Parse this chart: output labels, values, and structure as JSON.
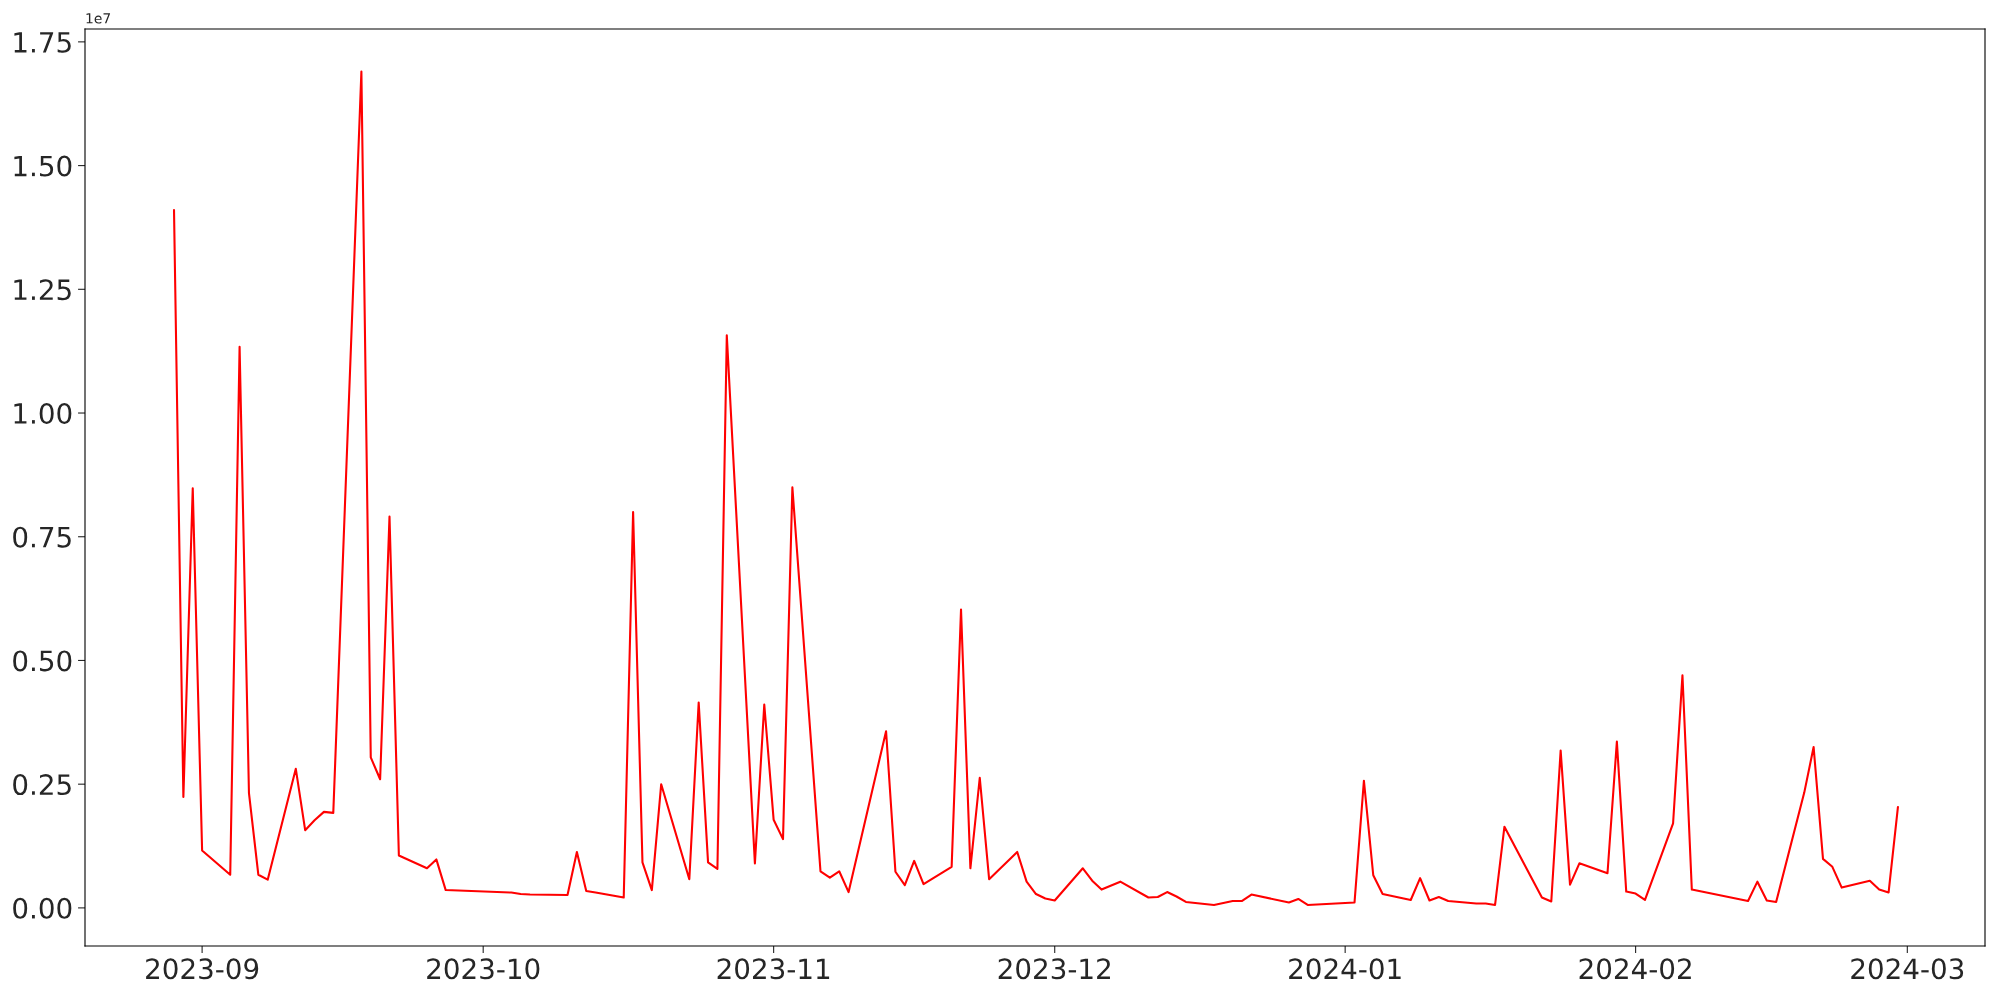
{
  "chart_data": {
    "type": "line",
    "annotations": [
      "1e7"
    ],
    "x": [
      "2023-08-29",
      "2023-08-30",
      "2023-08-31",
      "2023-09-01",
      "2023-09-04",
      "2023-09-05",
      "2023-09-06",
      "2023-09-07",
      "2023-09-08",
      "2023-09-11",
      "2023-09-12",
      "2023-09-13",
      "2023-09-14",
      "2023-09-15",
      "2023-09-18",
      "2023-09-19",
      "2023-09-20",
      "2023-09-21",
      "2023-09-22",
      "2023-09-25",
      "2023-09-26",
      "2023-09-27",
      "2023-10-04",
      "2023-10-05",
      "2023-10-06",
      "2023-10-10",
      "2023-10-11",
      "2023-10-12",
      "2023-10-13",
      "2023-10-16",
      "2023-10-17",
      "2023-10-18",
      "2023-10-19",
      "2023-10-20",
      "2023-10-23",
      "2023-10-24",
      "2023-10-25",
      "2023-10-26",
      "2023-10-27",
      "2023-10-30",
      "2023-10-31",
      "2023-11-01",
      "2023-11-02",
      "2023-11-03",
      "2023-11-06",
      "2023-11-07",
      "2023-11-08",
      "2023-11-09",
      "2023-11-13",
      "2023-11-14",
      "2023-11-15",
      "2023-11-16",
      "2023-11-17",
      "2023-11-20",
      "2023-11-21",
      "2023-11-22",
      "2023-11-23",
      "2023-11-24",
      "2023-11-27",
      "2023-11-28",
      "2023-11-29",
      "2023-11-30",
      "2023-12-01",
      "2023-12-04",
      "2023-12-05",
      "2023-12-06",
      "2023-12-08",
      "2023-12-11",
      "2023-12-12",
      "2023-12-13",
      "2023-12-14",
      "2023-12-15",
      "2023-12-18",
      "2023-12-20",
      "2023-12-21",
      "2023-12-22",
      "2023-12-26",
      "2023-12-27",
      "2023-12-28",
      "2024-01-02",
      "2024-01-03",
      "2024-01-04",
      "2024-01-05",
      "2024-01-08",
      "2024-01-09",
      "2024-01-10",
      "2024-01-11",
      "2024-01-12",
      "2024-01-15",
      "2024-01-16",
      "2024-01-17",
      "2024-01-18",
      "2024-01-22",
      "2024-01-23",
      "2024-01-24",
      "2024-01-25",
      "2024-01-26",
      "2024-01-29",
      "2024-01-30",
      "2024-01-31",
      "2024-02-01",
      "2024-02-02",
      "2024-02-05",
      "2024-02-06",
      "2024-02-07",
      "2024-02-13",
      "2024-02-14",
      "2024-02-15",
      "2024-02-16",
      "2024-02-19",
      "2024-02-20",
      "2024-02-21",
      "2024-02-22",
      "2024-02-23",
      "2024-02-26",
      "2024-02-27",
      "2024-02-28",
      "2024-02-29"
    ],
    "series": [
      {
        "color": "#ff0000",
        "values": [
          1.41,
          0.224,
          0.848,
          0.116,
          0.067,
          1.134,
          0.232,
          0.067,
          0.057,
          0.281,
          0.157,
          0.177,
          0.194,
          0.192,
          1.69,
          0.304,
          0.26,
          0.791,
          0.106,
          0.08,
          0.098,
          0.036,
          0.031,
          0.028,
          0.027,
          0.026,
          0.113,
          0.034,
          0.031,
          0.021,
          0.8,
          0.092,
          0.036,
          0.25,
          0.058,
          0.415,
          0.092,
          0.079,
          1.157,
          0.09,
          0.411,
          0.178,
          0.139,
          0.85,
          0.074,
          0.061,
          0.074,
          0.032,
          0.357,
          0.073,
          0.046,
          0.095,
          0.048,
          0.083,
          0.603,
          0.08,
          0.263,
          0.058,
          0.113,
          0.053,
          0.028,
          0.019,
          0.015,
          0.08,
          0.055,
          0.037,
          0.053,
          0.021,
          0.022,
          0.032,
          0.023,
          0.012,
          0.006,
          0.014,
          0.014,
          0.027,
          0.011,
          0.018,
          0.006,
          0.011,
          0.257,
          0.066,
          0.028,
          0.016,
          0.06,
          0.015,
          0.022,
          0.014,
          0.009,
          0.009,
          0.006,
          0.164,
          0.021,
          0.013,
          0.318,
          0.047,
          0.09,
          0.07,
          0.336,
          0.033,
          0.029,
          0.016,
          0.171,
          0.47,
          0.037,
          0.014,
          0.053,
          0.015,
          0.012,
          0.233,
          0.325,
          0.099,
          0.083,
          0.041,
          0.055,
          0.037,
          0.031,
          0.204
        ]
      }
    ],
    "xlim": [
      "2023-08-19T12:00",
      "2024-03-09T07:00"
    ],
    "xticks": [
      {
        "value": "2023-09-01",
        "label": "2023-09"
      },
      {
        "value": "2023-10-01",
        "label": "2023-10"
      },
      {
        "value": "2023-11-01",
        "label": "2023-11"
      },
      {
        "value": "2023-12-01",
        "label": "2023-12"
      },
      {
        "value": "2024-01-01",
        "label": "2024-01"
      },
      {
        "value": "2024-02-01",
        "label": "2024-02"
      },
      {
        "value": "2024-03-01",
        "label": "2024-03"
      }
    ],
    "ylim": [
      -0.077,
      1.776
    ],
    "yticks": [
      {
        "value": 0,
        "label": "0.00"
      },
      0.25,
      {
        "value": 0.5,
        "label": "0.50"
      },
      0.75,
      {
        "value": 1,
        "label": "1.00"
      },
      1.25,
      {
        "value": 1.5,
        "label": "1.50"
      },
      1.75
    ],
    "grid": false,
    "legend": false
  }
}
